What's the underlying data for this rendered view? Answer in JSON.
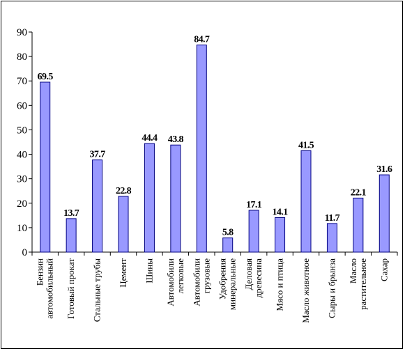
{
  "chart_data": {
    "type": "bar",
    "title": "",
    "xlabel": "",
    "ylabel": "",
    "ylim": [
      0,
      90
    ],
    "yticks": [
      0,
      10,
      20,
      30,
      40,
      50,
      60,
      70,
      80,
      90
    ],
    "grid": false,
    "legend": "none",
    "colors": {
      "bar_fill": "#9999ff",
      "bar_stroke": "#000080",
      "axis": "#000000"
    },
    "categories": [
      [
        "Бензин",
        "автомобильный"
      ],
      [
        "Готовый прокат"
      ],
      [
        "Стальные трубы"
      ],
      [
        "Цемент"
      ],
      [
        "Шины"
      ],
      [
        "Автомобили",
        "легковые"
      ],
      [
        "Автомобили",
        "грузовые"
      ],
      [
        "Удобрения",
        "минеральные"
      ],
      [
        "Деловая",
        "древесина"
      ],
      [
        "Мясо и птица"
      ],
      [
        "Масло животное"
      ],
      [
        "Сыры и брынза"
      ],
      [
        "Масло",
        "растительное"
      ],
      [
        "Сахар"
      ]
    ],
    "values": [
      69.5,
      13.7,
      37.7,
      22.8,
      44.4,
      43.8,
      84.7,
      5.8,
      17.1,
      14.1,
      41.5,
      11.7,
      22.1,
      31.6
    ],
    "value_labels": [
      "69.5",
      "13.7",
      "37.7",
      "22.8",
      "44.4",
      "43.8",
      "84.7",
      "5.8",
      "17.1",
      "14.1",
      "41.5",
      "11.7",
      "22.1",
      "31.6"
    ]
  }
}
